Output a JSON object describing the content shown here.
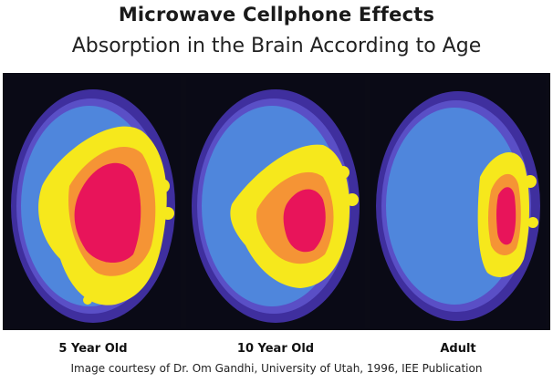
{
  "title": "Microwave Cellphone Effects",
  "subtitle": "Absorption in the Brain According to Age",
  "panels": [
    {
      "label": "5 Year Old"
    },
    {
      "label": "10 Year Old"
    },
    {
      "label": "Adult"
    }
  ],
  "credit": "Image courtesy of Dr. Om Gandhi, University of Utah, 1996, IEE Publication",
  "colors": {
    "background": "#0b0b16",
    "head_outline": "#5a4fc6",
    "brain_low": "#4f86dc",
    "absorption_medium": "#f6e81c",
    "absorption_high": "#f59435",
    "absorption_peak": "#e8145a"
  }
}
